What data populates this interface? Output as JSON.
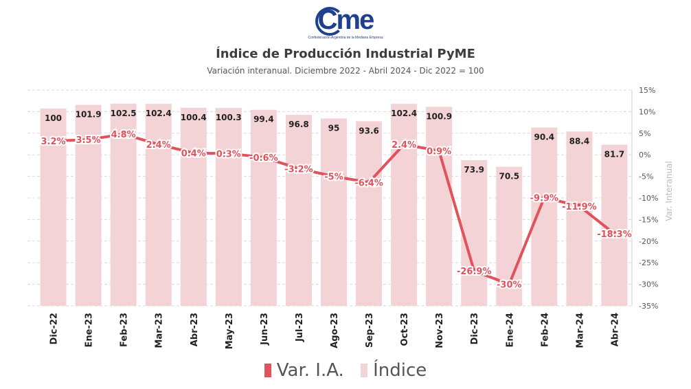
{
  "logo": {
    "text": "Cme",
    "tagline": "Confederación Argentina de la Mediana Empresa"
  },
  "chart_data": {
    "type": "bar",
    "title": "Índice de Producción Industrial PyME",
    "subtitle": "Variación interanual. Diciembre 2022 - Abril 2024 - Dic 2022 = 100",
    "categories": [
      "Dic-22",
      "Ene-23",
      "Feb-23",
      "Mar-23",
      "Abr-23",
      "May-23",
      "Jun-23",
      "Jul-23",
      "Ago-23",
      "Sep-23",
      "Oct-23",
      "Nov-23",
      "Dic-23",
      "Ene-24",
      "Feb-24",
      "Mar-24",
      "Abr-24"
    ],
    "series": [
      {
        "name": "Índice",
        "type": "bar",
        "values": [
          100,
          101.9,
          102.5,
          102.4,
          100.4,
          100.3,
          99.4,
          96.8,
          95,
          93.6,
          102.4,
          100.9,
          73.9,
          70.5,
          90.4,
          88.4,
          81.7
        ],
        "labels": [
          "100",
          "101.9",
          "102.5",
          "102.4",
          "100.4",
          "100.3",
          "99.4",
          "96.8",
          "95",
          "93.6",
          "102.4",
          "100.9",
          "73.9",
          "70.5",
          "90.4",
          "88.4",
          "81.7"
        ],
        "color": "#f3d3d6"
      },
      {
        "name": "Var. I.A.",
        "type": "line",
        "axis": "right",
        "values": [
          3.2,
          3.5,
          4.8,
          2.4,
          0.4,
          0.3,
          -0.6,
          -3.2,
          -5,
          -6.4,
          2.4,
          0.9,
          -26.9,
          -30,
          -9.9,
          -11.9,
          -18.3
        ],
        "labels": [
          "3.2%",
          "3.5%",
          "4.8%",
          "2.4%",
          "0.4%",
          "0.3%",
          "-0.6%",
          "-3.2%",
          "-5%",
          "-6.4%",
          "2.4%",
          "0.9%",
          "-26.9%",
          "-30%",
          "-9.9%",
          "-11.9%",
          "-18.3%"
        ],
        "color": "#e0525c"
      }
    ],
    "y2label": "Var. Interanual",
    "y2lim": [
      -35,
      15
    ],
    "y2ticks": [
      15,
      10,
      5,
      0,
      -5,
      -10,
      -15,
      -20,
      -25,
      -30,
      -35
    ],
    "y2ticklabels": [
      "15%",
      "10%",
      "5%",
      "0%",
      "-5%",
      "-10%",
      "-15%",
      "-20%",
      "-25%",
      "-30%",
      "-35%"
    ],
    "grid": true,
    "legend": "bottom-center"
  }
}
